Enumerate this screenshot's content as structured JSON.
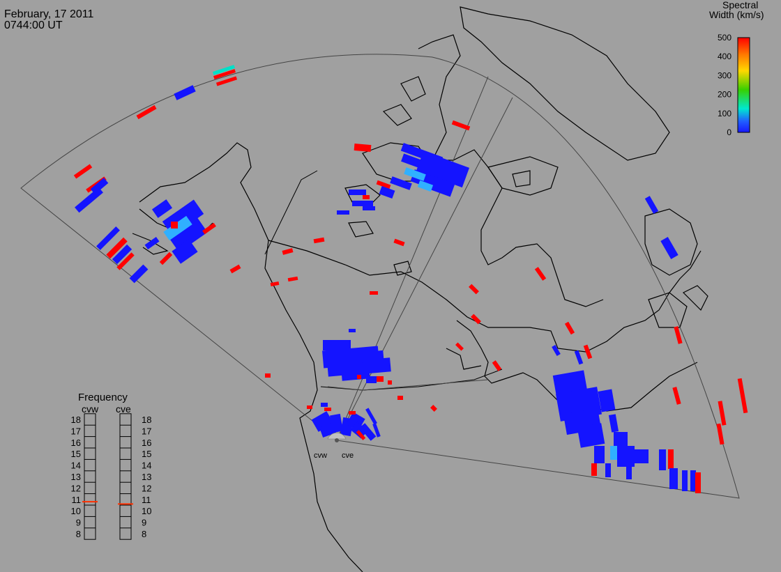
{
  "header": {
    "date": "February, 17 2011",
    "time": "0744:00 UT"
  },
  "colorbar": {
    "title_line1": "Spectral",
    "title_line2": "Width (km/s)",
    "ticks": [
      "500",
      "400",
      "300",
      "200",
      "100",
      "0"
    ],
    "colors": [
      "#ff0000",
      "#ff7f00",
      "#ffd800",
      "#38d000",
      "#00e8d0",
      "#2060ff",
      "#1818ff"
    ]
  },
  "frequency": {
    "title": "Frequency",
    "radars": [
      "cvw",
      "cve"
    ],
    "ticks": [
      "18",
      "17",
      "16",
      "15",
      "14",
      "13",
      "12",
      "11",
      "10",
      "9",
      "8"
    ],
    "cvw_value_mhz": 10.8,
    "cve_value_mhz": 10.6,
    "marker_color": "#ff3000"
  },
  "radar_labels": {
    "west": "cvw",
    "east": "cve"
  },
  "colors": {
    "background": "#a0a0a0",
    "low_width": "#1414ff",
    "high_width": "#ff0000",
    "mid_width": "#30b0ff",
    "cyan": "#00e0c8"
  }
}
